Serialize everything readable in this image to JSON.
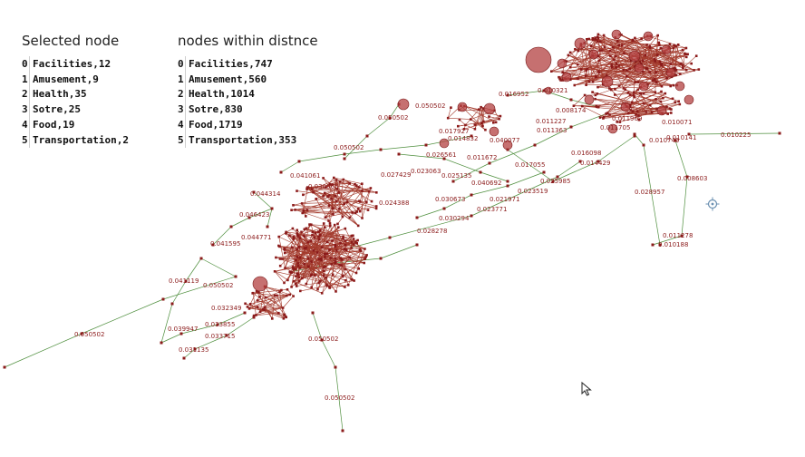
{
  "selected_panel": {
    "title": "Selected node",
    "rows": [
      {
        "index": "0",
        "text": "Facilities,12"
      },
      {
        "index": "1",
        "text": "Amusement,9"
      },
      {
        "index": "2",
        "text": "Health,35"
      },
      {
        "index": "3",
        "text": "Sotre,25"
      },
      {
        "index": "4",
        "text": "Food,19"
      },
      {
        "index": "5",
        "text": "Transportation,2"
      }
    ]
  },
  "distance_panel": {
    "title": "nodes within distnce",
    "rows": [
      {
        "index": "0",
        "text": "Facilities,747"
      },
      {
        "index": "1",
        "text": "Amusement,560"
      },
      {
        "index": "2",
        "text": "Health,1014"
      },
      {
        "index": "3",
        "text": "Sotre,830"
      },
      {
        "index": "4",
        "text": "Food,1719"
      },
      {
        "index": "5",
        "text": "Transportation,353"
      }
    ]
  },
  "network": {
    "node_color": "#8b1a1a",
    "edge_color": "#4f8f3e",
    "edge_labels": [
      "0.050502",
      "0.050502",
      "0.050502",
      "0.050502",
      "0.050502",
      "0.050502",
      "0.050502",
      "0.010225",
      "0.010141",
      "0.010749",
      "0.010071",
      "0.008603",
      "0.028957",
      "0.011278",
      "0.010188",
      "0.016952",
      "0.010321",
      "0.008174",
      "0.011227",
      "0.011363",
      "0.011672",
      "0.017055",
      "0.023519",
      "0.025985",
      "0.016098",
      "0.014429",
      "0.011705",
      "0.011969",
      "0.040692",
      "0.030673",
      "0.021971",
      "0.023771",
      "0.030294",
      "0.028278",
      "0.024388",
      "0.025135",
      "0.023063",
      "0.027429",
      "0.044314",
      "0.046423",
      "0.044771",
      "0.041595",
      "0.041119",
      "0.032349",
      "0.039947",
      "0.033715",
      "0.031135",
      "0.033855",
      "0.041061",
      "0.036665",
      "0.017927",
      "0.014832",
      "0.040077",
      "0.026561"
    ]
  }
}
